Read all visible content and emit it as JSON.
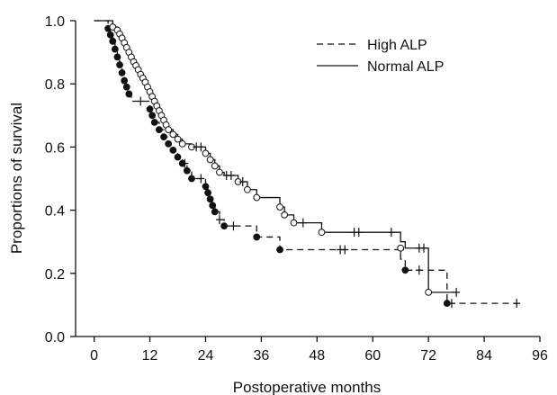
{
  "chart_data": {
    "type": "line",
    "subtype": "kaplan-meier survival curves",
    "xlabel": "Postoperative months",
    "ylabel": "Proportions of survival",
    "xlim": [
      -4,
      96
    ],
    "ylim": [
      0.0,
      1.0
    ],
    "x_ticks": [
      "0",
      "12",
      "24",
      "36",
      "48",
      "60",
      "72",
      "84",
      "96"
    ],
    "y_ticks": [
      "0.0",
      "0.2",
      "0.4",
      "0.6",
      "0.8",
      "1.0"
    ],
    "grid": false,
    "legend_position": "top-right",
    "series": [
      {
        "name": "High ALP",
        "line_style": "dashed",
        "marker": "filled-circle",
        "steps": [
          [
            0,
            1.0
          ],
          [
            3,
            0.975
          ],
          [
            3.5,
            0.955
          ],
          [
            4,
            0.935
          ],
          [
            4.5,
            0.91
          ],
          [
            5,
            0.885
          ],
          [
            5.5,
            0.86
          ],
          [
            6,
            0.835
          ],
          [
            6.5,
            0.81
          ],
          [
            7,
            0.79
          ],
          [
            7.5,
            0.768
          ],
          [
            8,
            0.745
          ],
          [
            12,
            0.72
          ],
          [
            12.5,
            0.7
          ],
          [
            13,
            0.678
          ],
          [
            14,
            0.655
          ],
          [
            15,
            0.632
          ],
          [
            16,
            0.61
          ],
          [
            17,
            0.59
          ],
          [
            18,
            0.568
          ],
          [
            19,
            0.548
          ],
          [
            20,
            0.525
          ],
          [
            21,
            0.5
          ],
          [
            24,
            0.475
          ],
          [
            24.5,
            0.455
          ],
          [
            25,
            0.435
          ],
          [
            25.5,
            0.415
          ],
          [
            26,
            0.395
          ],
          [
            27,
            0.37
          ],
          [
            28,
            0.35
          ],
          [
            35,
            0.315
          ],
          [
            40,
            0.275
          ],
          [
            66,
            0.245
          ],
          [
            67,
            0.21
          ],
          [
            76,
            0.105
          ],
          [
            91,
            0.105
          ]
        ],
        "events": [
          [
            3,
            0.975
          ],
          [
            3.5,
            0.955
          ],
          [
            4,
            0.935
          ],
          [
            4.5,
            0.91
          ],
          [
            5,
            0.885
          ],
          [
            5.5,
            0.86
          ],
          [
            6,
            0.835
          ],
          [
            6.5,
            0.81
          ],
          [
            7,
            0.79
          ],
          [
            7.5,
            0.768
          ],
          [
            12,
            0.72
          ],
          [
            12.5,
            0.7
          ],
          [
            13,
            0.678
          ],
          [
            14,
            0.655
          ],
          [
            15,
            0.632
          ],
          [
            16,
            0.61
          ],
          [
            17,
            0.59
          ],
          [
            18,
            0.568
          ],
          [
            19,
            0.548
          ],
          [
            20,
            0.525
          ],
          [
            21,
            0.5
          ],
          [
            24,
            0.475
          ],
          [
            24.5,
            0.455
          ],
          [
            25,
            0.435
          ],
          [
            25.5,
            0.415
          ],
          [
            26,
            0.395
          ],
          [
            28,
            0.35
          ],
          [
            35,
            0.315
          ],
          [
            40,
            0.275
          ],
          [
            67,
            0.21
          ],
          [
            76,
            0.105
          ]
        ],
        "censored": [
          [
            10,
            0.745
          ],
          [
            19.5,
            0.548
          ],
          [
            23,
            0.5
          ],
          [
            27,
            0.37
          ],
          [
            30,
            0.35
          ],
          [
            53,
            0.275
          ],
          [
            54,
            0.275
          ],
          [
            66,
            0.275
          ],
          [
            70,
            0.21
          ],
          [
            77,
            0.105
          ],
          [
            91,
            0.105
          ]
        ]
      },
      {
        "name": "Normal ALP",
        "line_style": "solid",
        "marker": "open-circle",
        "steps": [
          [
            0,
            1.0
          ],
          [
            4,
            0.98
          ],
          [
            5,
            0.97
          ],
          [
            5.5,
            0.958
          ],
          [
            6,
            0.945
          ],
          [
            6.5,
            0.93
          ],
          [
            7,
            0.915
          ],
          [
            7.5,
            0.9
          ],
          [
            8,
            0.885
          ],
          [
            8.5,
            0.87
          ],
          [
            9,
            0.858
          ],
          [
            9.5,
            0.845
          ],
          [
            10,
            0.83
          ],
          [
            10.5,
            0.818
          ],
          [
            11,
            0.805
          ],
          [
            11.5,
            0.79
          ],
          [
            12,
            0.775
          ],
          [
            12.5,
            0.76
          ],
          [
            13,
            0.745
          ],
          [
            13.5,
            0.73
          ],
          [
            14,
            0.715
          ],
          [
            14.5,
            0.7
          ],
          [
            15,
            0.685
          ],
          [
            15.5,
            0.67
          ],
          [
            16,
            0.655
          ],
          [
            17,
            0.64
          ],
          [
            18,
            0.625
          ],
          [
            19,
            0.61
          ],
          [
            21,
            0.6
          ],
          [
            24,
            0.58
          ],
          [
            25,
            0.56
          ],
          [
            26,
            0.54
          ],
          [
            27,
            0.52
          ],
          [
            28,
            0.51
          ],
          [
            31,
            0.49
          ],
          [
            33,
            0.465
          ],
          [
            35,
            0.44
          ],
          [
            40,
            0.41
          ],
          [
            41,
            0.385
          ],
          [
            43,
            0.36
          ],
          [
            49,
            0.33
          ],
          [
            66,
            0.3
          ],
          [
            67,
            0.28
          ],
          [
            72,
            0.14
          ],
          [
            78,
            0.14
          ]
        ],
        "events": [
          [
            4,
            0.98
          ],
          [
            5,
            0.97
          ],
          [
            5.5,
            0.958
          ],
          [
            6,
            0.945
          ],
          [
            6.5,
            0.93
          ],
          [
            7,
            0.915
          ],
          [
            7.5,
            0.9
          ],
          [
            8,
            0.885
          ],
          [
            8.5,
            0.87
          ],
          [
            9,
            0.858
          ],
          [
            9.5,
            0.845
          ],
          [
            10,
            0.83
          ],
          [
            10.5,
            0.818
          ],
          [
            11,
            0.805
          ],
          [
            11.5,
            0.79
          ],
          [
            12,
            0.775
          ],
          [
            12.5,
            0.76
          ],
          [
            13,
            0.745
          ],
          [
            13.5,
            0.73
          ],
          [
            14,
            0.715
          ],
          [
            14.5,
            0.7
          ],
          [
            15,
            0.685
          ],
          [
            15.5,
            0.67
          ],
          [
            16,
            0.655
          ],
          [
            17,
            0.64
          ],
          [
            18,
            0.625
          ],
          [
            19,
            0.61
          ],
          [
            21,
            0.6
          ],
          [
            24,
            0.58
          ],
          [
            25,
            0.56
          ],
          [
            26,
            0.54
          ],
          [
            27,
            0.52
          ],
          [
            31,
            0.49
          ],
          [
            33,
            0.465
          ],
          [
            35,
            0.44
          ],
          [
            40,
            0.41
          ],
          [
            41,
            0.385
          ],
          [
            43,
            0.36
          ],
          [
            49,
            0.33
          ],
          [
            66,
            0.28
          ],
          [
            72,
            0.14
          ]
        ],
        "censored": [
          [
            22,
            0.6
          ],
          [
            23,
            0.6
          ],
          [
            28.5,
            0.51
          ],
          [
            29.5,
            0.51
          ],
          [
            32,
            0.49
          ],
          [
            45,
            0.36
          ],
          [
            56,
            0.33
          ],
          [
            57,
            0.33
          ],
          [
            64,
            0.33
          ],
          [
            70,
            0.28
          ],
          [
            71,
            0.28
          ],
          [
            78,
            0.14
          ]
        ]
      }
    ]
  }
}
